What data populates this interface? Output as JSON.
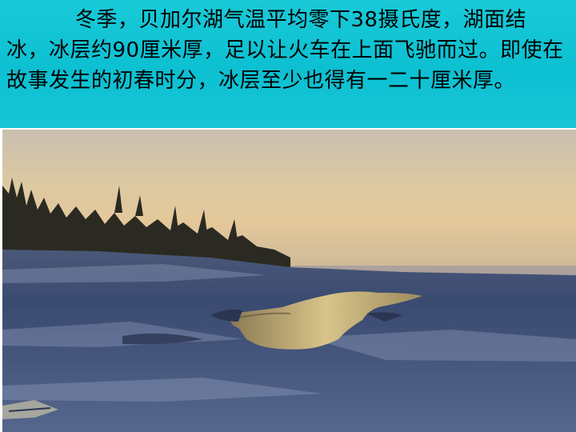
{
  "slide": {
    "paragraph": "冬季，贝加尔湖气温平均零下38摄氏度，湖面结冰，冰层约90厘米厚，足以让火车在上面飞驰而过。即使在故事发生的初春时分，冰层至少也得有一二十厘米厚。",
    "background_color": "#13c4d4"
  },
  "photo": {
    "subject": "frozen-lake-at-sunset"
  }
}
